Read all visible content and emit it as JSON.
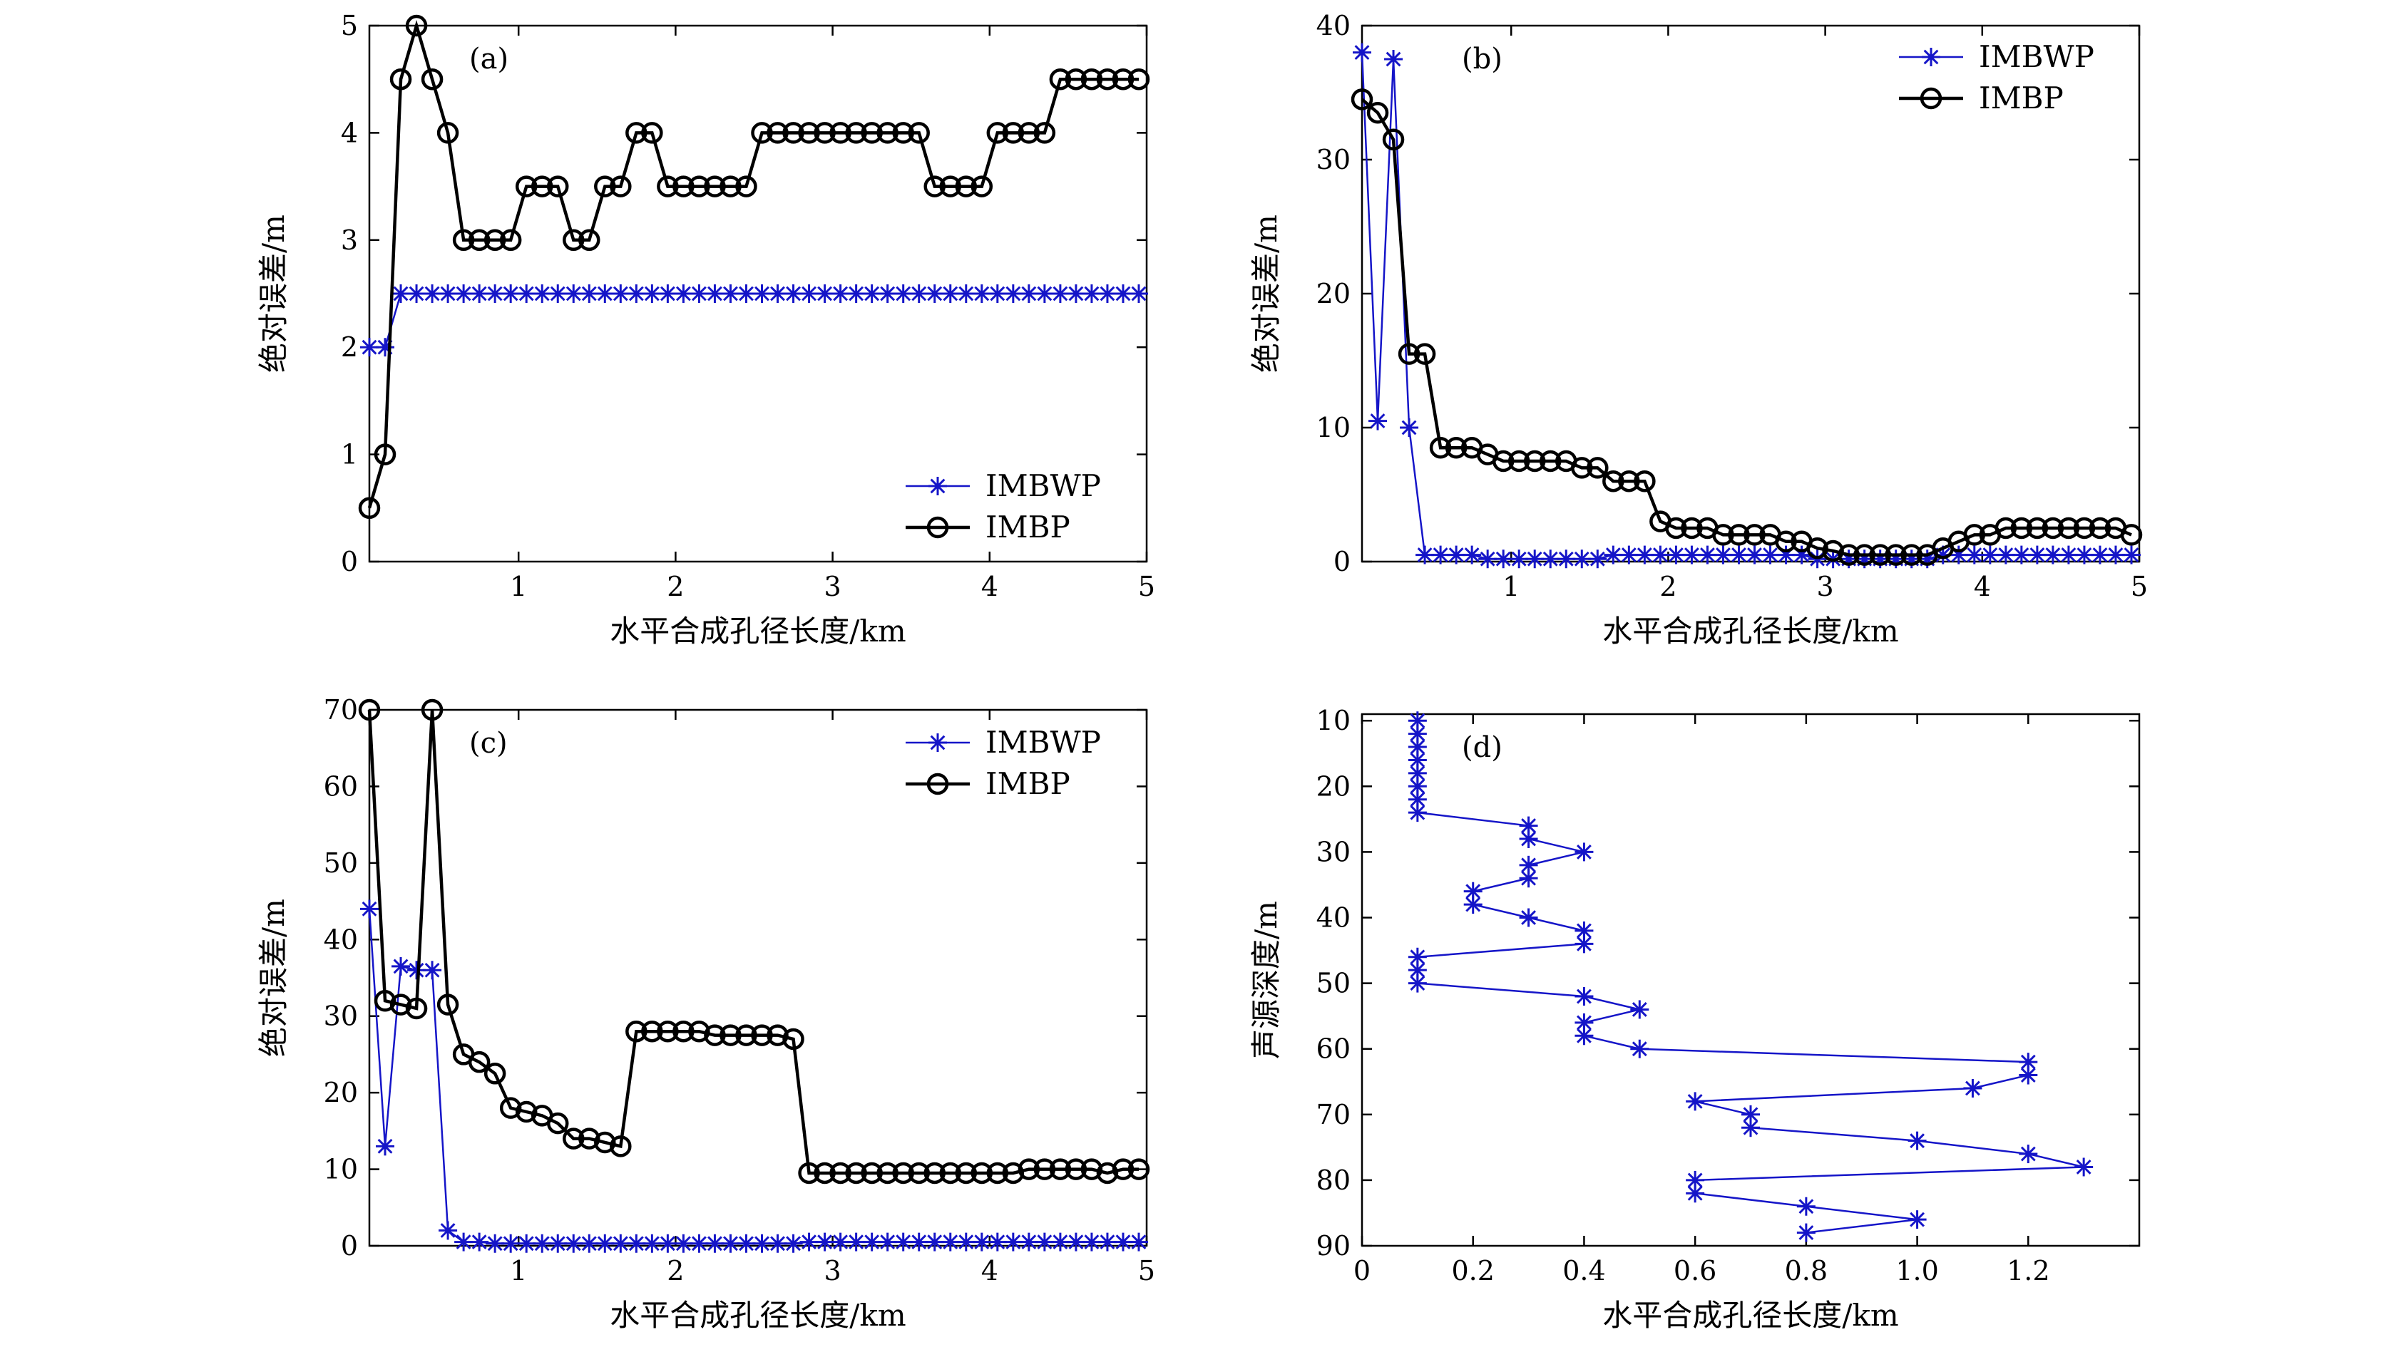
{
  "figure": {
    "colors": {
      "imbwp": "#1515c8",
      "imbp": "#000000",
      "frame": "#000000"
    }
  },
  "chart_data": [
    {
      "panel": "a",
      "panel_label": "(a)",
      "type": "line",
      "xlabel": "水平合成孔径长度/km",
      "ylabel": "绝对误差/m",
      "xlim": [
        0.05,
        5
      ],
      "ylim": [
        0,
        5
      ],
      "xticks": [
        1,
        2,
        3,
        4,
        5
      ],
      "yticks": [
        0,
        1,
        2,
        3,
        4,
        5
      ],
      "legend": {
        "position": "bottom-right",
        "entries": [
          "IMBWP",
          "IMBP"
        ]
      },
      "series": [
        {
          "name": "IMBWP",
          "marker": "star",
          "color": "#1515c8",
          "x": [
            0.05,
            0.15,
            0.25,
            0.35,
            0.45,
            0.55,
            0.65,
            0.75,
            0.85,
            0.95,
            1.05,
            1.15,
            1.25,
            1.35,
            1.45,
            1.55,
            1.65,
            1.75,
            1.85,
            1.95,
            2.05,
            2.15,
            2.25,
            2.35,
            2.45,
            2.55,
            2.65,
            2.75,
            2.85,
            2.95,
            3.05,
            3.15,
            3.25,
            3.35,
            3.45,
            3.55,
            3.65,
            3.75,
            3.85,
            3.95,
            4.05,
            4.15,
            4.25,
            4.35,
            4.45,
            4.55,
            4.65,
            4.75,
            4.85,
            4.95
          ],
          "y": [
            2,
            2,
            2.5,
            2.5,
            2.5,
            2.5,
            2.5,
            2.5,
            2.5,
            2.5,
            2.5,
            2.5,
            2.5,
            2.5,
            2.5,
            2.5,
            2.5,
            2.5,
            2.5,
            2.5,
            2.5,
            2.5,
            2.5,
            2.5,
            2.5,
            2.5,
            2.5,
            2.5,
            2.5,
            2.5,
            2.5,
            2.5,
            2.5,
            2.5,
            2.5,
            2.5,
            2.5,
            2.5,
            2.5,
            2.5,
            2.5,
            2.5,
            2.5,
            2.5,
            2.5,
            2.5,
            2.5,
            2.5,
            2.5,
            2.5
          ]
        },
        {
          "name": "IMBP",
          "marker": "circle",
          "color": "#000000",
          "x": [
            0.05,
            0.15,
            0.25,
            0.35,
            0.45,
            0.55,
            0.65,
            0.75,
            0.85,
            0.95,
            1.05,
            1.15,
            1.25,
            1.35,
            1.45,
            1.55,
            1.65,
            1.75,
            1.85,
            1.95,
            2.05,
            2.15,
            2.25,
            2.35,
            2.45,
            2.55,
            2.65,
            2.75,
            2.85,
            2.95,
            3.05,
            3.15,
            3.25,
            3.35,
            3.45,
            3.55,
            3.65,
            3.75,
            3.85,
            3.95,
            4.05,
            4.15,
            4.25,
            4.35,
            4.45,
            4.55,
            4.65,
            4.75,
            4.85,
            4.95
          ],
          "y": [
            0.5,
            1,
            4.5,
            5,
            4.5,
            4,
            3,
            3,
            3,
            3,
            3.5,
            3.5,
            3.5,
            3,
            3,
            3.5,
            3.5,
            4,
            4,
            3.5,
            3.5,
            3.5,
            3.5,
            3.5,
            3.5,
            4,
            4,
            4,
            4,
            4,
            4,
            4,
            4,
            4,
            4,
            4,
            3.5,
            3.5,
            3.5,
            3.5,
            4,
            4,
            4,
            4,
            4.5,
            4.5,
            4.5,
            4.5,
            4.5,
            4.5
          ]
        }
      ]
    },
    {
      "panel": "b",
      "panel_label": "(b)",
      "type": "line",
      "xlabel": "水平合成孔径长度/km",
      "ylabel": "绝对误差/m",
      "xlim": [
        0.05,
        5
      ],
      "ylim": [
        0,
        40
      ],
      "xticks": [
        1,
        2,
        3,
        4,
        5
      ],
      "yticks": [
        0,
        10,
        20,
        30,
        40
      ],
      "legend": {
        "position": "top-right",
        "entries": [
          "IMBWP",
          "IMBP"
        ]
      },
      "series": [
        {
          "name": "IMBWP",
          "marker": "star",
          "color": "#1515c8",
          "x": [
            0.05,
            0.15,
            0.25,
            0.35,
            0.45,
            0.55,
            0.65,
            0.75,
            0.85,
            0.95,
            1.05,
            1.15,
            1.25,
            1.35,
            1.45,
            1.55,
            1.65,
            1.75,
            1.85,
            1.95,
            2.05,
            2.15,
            2.25,
            2.35,
            2.45,
            2.55,
            2.65,
            2.75,
            2.85,
            2.95,
            3.05,
            3.15,
            3.25,
            3.35,
            3.45,
            3.55,
            3.65,
            3.75,
            3.85,
            3.95,
            4.05,
            4.15,
            4.25,
            4.35,
            4.45,
            4.55,
            4.65,
            4.75,
            4.85,
            4.95
          ],
          "y": [
            38,
            10.5,
            37.5,
            10,
            0.5,
            0.5,
            0.5,
            0.5,
            0.2,
            0.2,
            0.2,
            0.2,
            0.2,
            0.2,
            0.2,
            0.2,
            0.5,
            0.5,
            0.5,
            0.5,
            0.5,
            0.5,
            0.5,
            0.5,
            0.5,
            0.5,
            0.5,
            0.5,
            0.5,
            0.2,
            0.2,
            0.2,
            0.2,
            0.2,
            0.2,
            0.2,
            0.2,
            0.5,
            0.5,
            0.5,
            0.5,
            0.5,
            0.5,
            0.5,
            0.5,
            0.5,
            0.5,
            0.5,
            0.5,
            0.5
          ]
        },
        {
          "name": "IMBP",
          "marker": "circle",
          "color": "#000000",
          "x": [
            0.05,
            0.15,
            0.25,
            0.35,
            0.45,
            0.55,
            0.65,
            0.75,
            0.85,
            0.95,
            1.05,
            1.15,
            1.25,
            1.35,
            1.45,
            1.55,
            1.65,
            1.75,
            1.85,
            1.95,
            2.05,
            2.15,
            2.25,
            2.35,
            2.45,
            2.55,
            2.65,
            2.75,
            2.85,
            2.95,
            3.05,
            3.15,
            3.25,
            3.35,
            3.45,
            3.55,
            3.65,
            3.75,
            3.85,
            3.95,
            4.05,
            4.15,
            4.25,
            4.35,
            4.45,
            4.55,
            4.65,
            4.75,
            4.85,
            4.95
          ],
          "y": [
            34.5,
            33.5,
            31.5,
            15.5,
            15.5,
            8.5,
            8.5,
            8.5,
            8,
            7.5,
            7.5,
            7.5,
            7.5,
            7.5,
            7,
            7,
            6,
            6,
            6,
            3,
            2.5,
            2.5,
            2.5,
            2,
            2,
            2,
            2,
            1.5,
            1.5,
            1,
            0.8,
            0.5,
            0.5,
            0.5,
            0.5,
            0.5,
            0.5,
            1,
            1.5,
            2,
            2,
            2.5,
            2.5,
            2.5,
            2.5,
            2.5,
            2.5,
            2.5,
            2.5,
            2
          ]
        }
      ]
    },
    {
      "panel": "c",
      "panel_label": "(c)",
      "type": "line",
      "xlabel": "水平合成孔径长度/km",
      "ylabel": "绝对误差/m",
      "xlim": [
        0.05,
        5
      ],
      "ylim": [
        0,
        70
      ],
      "xticks": [
        1,
        2,
        3,
        4,
        5
      ],
      "yticks": [
        0,
        10,
        20,
        30,
        40,
        50,
        60,
        70
      ],
      "legend": {
        "position": "top-right",
        "entries": [
          "IMBWP",
          "IMBP"
        ]
      },
      "series": [
        {
          "name": "IMBWP",
          "marker": "star",
          "color": "#1515c8",
          "x": [
            0.05,
            0.15,
            0.25,
            0.35,
            0.45,
            0.55,
            0.65,
            0.75,
            0.85,
            0.95,
            1.05,
            1.15,
            1.25,
            1.35,
            1.45,
            1.55,
            1.65,
            1.75,
            1.85,
            1.95,
            2.05,
            2.15,
            2.25,
            2.35,
            2.45,
            2.55,
            2.65,
            2.75,
            2.85,
            2.95,
            3.05,
            3.15,
            3.25,
            3.35,
            3.45,
            3.55,
            3.65,
            3.75,
            3.85,
            3.95,
            4.05,
            4.15,
            4.25,
            4.35,
            4.45,
            4.55,
            4.65,
            4.75,
            4.85,
            4.95
          ],
          "y": [
            44,
            13,
            36.5,
            36,
            36,
            2,
            0.5,
            0.5,
            0.3,
            0.3,
            0.3,
            0.3,
            0.3,
            0.3,
            0.3,
            0.3,
            0.3,
            0.3,
            0.3,
            0.3,
            0.3,
            0.3,
            0.3,
            0.3,
            0.3,
            0.3,
            0.3,
            0.3,
            0.5,
            0.5,
            0.5,
            0.5,
            0.5,
            0.5,
            0.5,
            0.5,
            0.5,
            0.5,
            0.5,
            0.5,
            0.5,
            0.5,
            0.5,
            0.5,
            0.5,
            0.5,
            0.5,
            0.5,
            0.5,
            0.5
          ]
        },
        {
          "name": "IMBP",
          "marker": "circle",
          "color": "#000000",
          "x": [
            0.05,
            0.15,
            0.25,
            0.35,
            0.45,
            0.55,
            0.65,
            0.75,
            0.85,
            0.95,
            1.05,
            1.15,
            1.25,
            1.35,
            1.45,
            1.55,
            1.65,
            1.75,
            1.85,
            1.95,
            2.05,
            2.15,
            2.25,
            2.35,
            2.45,
            2.55,
            2.65,
            2.75,
            2.85,
            2.95,
            3.05,
            3.15,
            3.25,
            3.35,
            3.45,
            3.55,
            3.65,
            3.75,
            3.85,
            3.95,
            4.05,
            4.15,
            4.25,
            4.35,
            4.45,
            4.55,
            4.65,
            4.75,
            4.85,
            4.95
          ],
          "y": [
            70,
            32,
            31.5,
            31,
            70,
            31.5,
            25,
            24,
            22.5,
            18,
            17.5,
            17,
            16,
            14,
            14,
            13.5,
            13,
            28,
            28,
            28,
            28,
            28,
            27.5,
            27.5,
            27.5,
            27.5,
            27.5,
            27,
            9.5,
            9.5,
            9.5,
            9.5,
            9.5,
            9.5,
            9.5,
            9.5,
            9.5,
            9.5,
            9.5,
            9.5,
            9.5,
            9.5,
            10,
            10,
            10,
            10,
            10,
            9.5,
            10,
            10
          ]
        }
      ]
    },
    {
      "panel": "d",
      "panel_label": "(d)",
      "type": "line",
      "xlabel": "水平合成孔径长度/km",
      "ylabel": "声源深度/m",
      "xlim": [
        0,
        1.4
      ],
      "ylim": [
        90,
        9
      ],
      "y_inverted": true,
      "xticks": [
        0,
        0.2,
        0.4,
        0.6,
        0.8,
        1.0,
        1.2
      ],
      "xtick_labels": [
        "0",
        "0.2",
        "0.4",
        "0.6",
        "0.8",
        "1.0",
        "1.2"
      ],
      "yticks": [
        10,
        20,
        30,
        40,
        50,
        60,
        70,
        80,
        90
      ],
      "series": [
        {
          "name": "IMBWP",
          "marker": "star",
          "color": "#1515c8",
          "x": [
            0.1,
            0.1,
            0.1,
            0.1,
            0.1,
            0.1,
            0.1,
            0.1,
            0.3,
            0.3,
            0.4,
            0.3,
            0.3,
            0.2,
            0.2,
            0.3,
            0.4,
            0.4,
            0.1,
            0.1,
            0.1,
            0.4,
            0.5,
            0.4,
            0.4,
            0.5,
            1.2,
            1.2,
            1.1,
            0.6,
            0.7,
            0.7,
            1.0,
            1.2,
            1.3,
            0.6,
            0.6,
            0.8,
            1.0,
            0.8
          ],
          "y": [
            10,
            12,
            14,
            16,
            18,
            20,
            22,
            24,
            26,
            28,
            30,
            32,
            34,
            36,
            38,
            40,
            42,
            44,
            46,
            48,
            50,
            52,
            54,
            56,
            58,
            60,
            62,
            64,
            66,
            68,
            70,
            72,
            74,
            76,
            78,
            80,
            82,
            84,
            86,
            88
          ]
        }
      ]
    }
  ]
}
